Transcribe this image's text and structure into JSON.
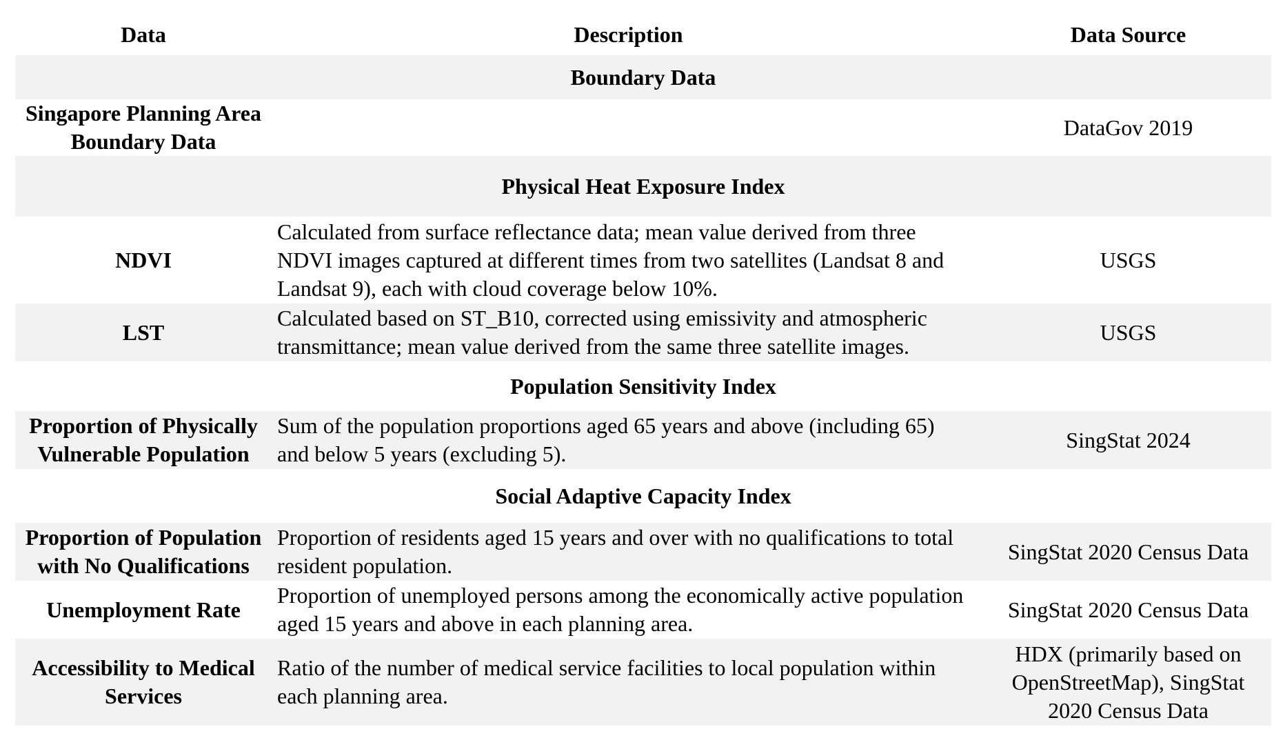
{
  "table": {
    "headers": {
      "data": "Data",
      "description": "Description",
      "source": "Data Source"
    },
    "sections": [
      {
        "title": "Boundary Data",
        "rows": [
          {
            "name": "Singapore Planning Area Boundary Data",
            "description": "",
            "source": "DataGov 2019"
          }
        ]
      },
      {
        "title": "Physical Heat Exposure Index",
        "rows": [
          {
            "name": "NDVI",
            "description": "Calculated from surface reflectance data; mean value derived from three NDVI images captured at different times from two satellites (Landsat 8 and Landsat 9), each with cloud coverage below 10%.",
            "source": "USGS"
          },
          {
            "name": "LST",
            "description": "Calculated based on ST_B10, corrected using emissivity and atmospheric transmittance; mean value derived from the same three satellite images.",
            "source": "USGS"
          }
        ]
      },
      {
        "title": "Population Sensitivity Index",
        "rows": [
          {
            "name": "Proportion of Physically Vulnerable Population",
            "description": "Sum of the population proportions aged 65 years and above (including 65) and below 5 years (excluding 5).",
            "source": "SingStat 2024"
          }
        ]
      },
      {
        "title": "Social Adaptive Capacity Index",
        "rows": [
          {
            "name": "Proportion of Population with No Qualifications",
            "description": "Proportion of residents aged 15 years and over with no qualifications to total resident population.",
            "source": "SingStat 2020 Census Data"
          },
          {
            "name": "Unemployment Rate",
            "description": "Proportion of unemployed persons among the economically active population aged 15 years and above in each planning area.",
            "source": "SingStat 2020 Census Data"
          },
          {
            "name": "Accessibility to Medical Services",
            "description": "Ratio of the number of medical service facilities to local population within each planning area.",
            "source": "HDX (primarily based on OpenStreetMap), SingStat 2020 Census Data"
          }
        ]
      }
    ]
  }
}
